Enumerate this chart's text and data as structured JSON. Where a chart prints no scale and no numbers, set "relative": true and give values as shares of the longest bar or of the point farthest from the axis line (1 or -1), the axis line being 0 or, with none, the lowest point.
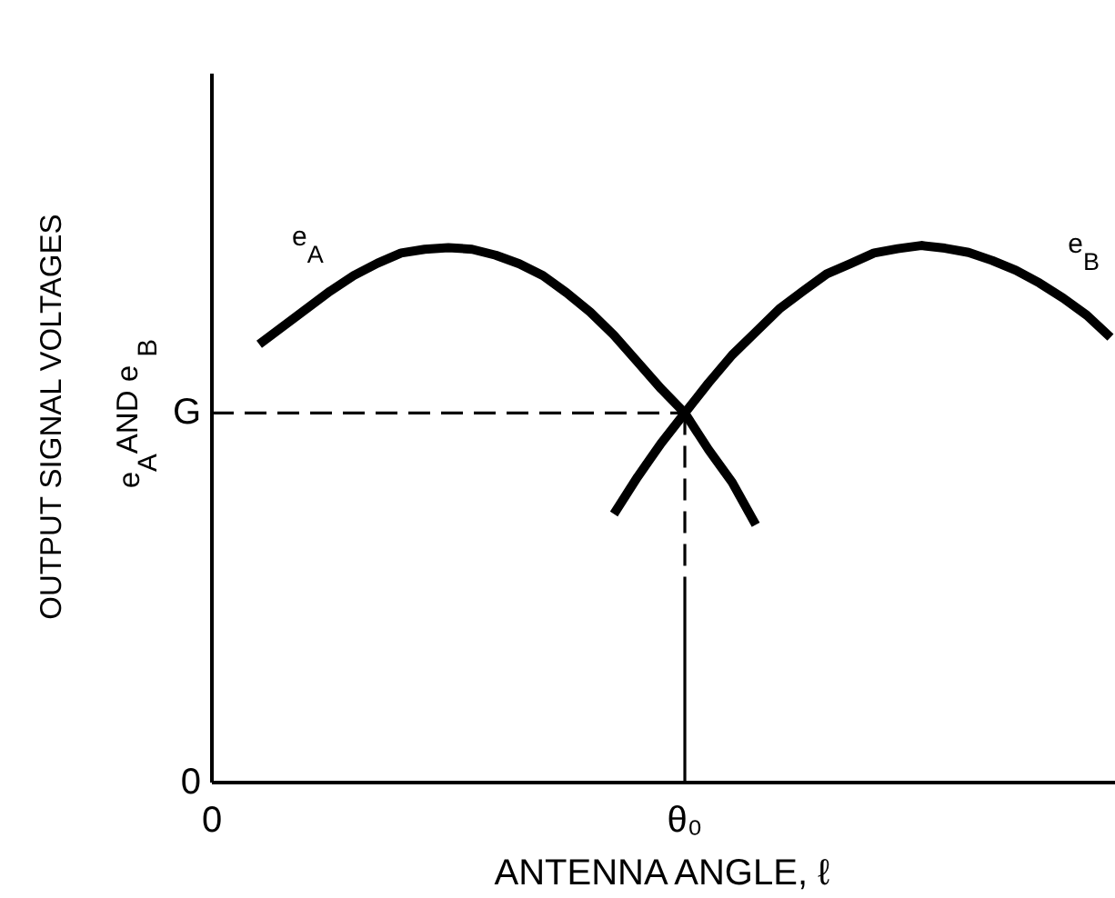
{
  "chart_data": {
    "type": "line",
    "xlabel": "ANTENNA ANGLE, ℓ",
    "ylabel": "OUTPUT SIGNAL VOLTAGES\ne$_{A}$ AND e$_{B}$",
    "relative": true,
    "categories": [
      "0",
      null,
      null,
      null,
      null,
      null,
      null,
      null,
      null,
      null,
      null,
      null,
      null,
      null,
      null,
      null,
      null,
      null,
      null,
      null,
      "θ₀",
      null,
      null,
      null,
      null,
      null,
      null,
      null,
      null,
      null,
      null,
      null,
      null,
      null,
      null,
      null,
      null,
      null,
      null
    ],
    "series": [
      {
        "name": "e$_{A}$",
        "color": "#000000",
        "values": [
          null,
          null,
          0.816,
          0.849,
          0.882,
          0.915,
          0.944,
          0.967,
          0.986,
          0.993,
          0.996,
          0.993,
          0.982,
          0.966,
          0.944,
          0.912,
          0.876,
          0.833,
          0.783,
          0.733,
          0.688,
          0.62,
          0.559,
          0.48,
          null,
          null,
          null,
          null,
          null,
          null,
          null,
          null,
          null,
          null,
          null,
          null,
          null,
          null,
          null
        ]
      },
      {
        "name": "e$_{B}$",
        "color": "#000000",
        "values": [
          null,
          null,
          null,
          null,
          null,
          null,
          null,
          null,
          null,
          null,
          null,
          null,
          null,
          null,
          null,
          null,
          null,
          0.5,
          0.569,
          0.632,
          0.688,
          0.744,
          0.796,
          0.839,
          0.882,
          0.915,
          0.947,
          0.966,
          0.986,
          0.994,
          1.0,
          0.995,
          0.987,
          0.972,
          0.954,
          0.93,
          0.902,
          0.87,
          0.829
        ]
      }
    ],
    "ref_lines": [
      {
        "axis": "y",
        "value": 0.688,
        "label": "G",
        "line_style": "dashed"
      },
      {
        "axis": "x",
        "value": "θ₀",
        "line_style": "dashed"
      }
    ],
    "annotations": [
      "0"
    ],
    "grid": false,
    "marker": "none",
    "line_style": "solid"
  }
}
